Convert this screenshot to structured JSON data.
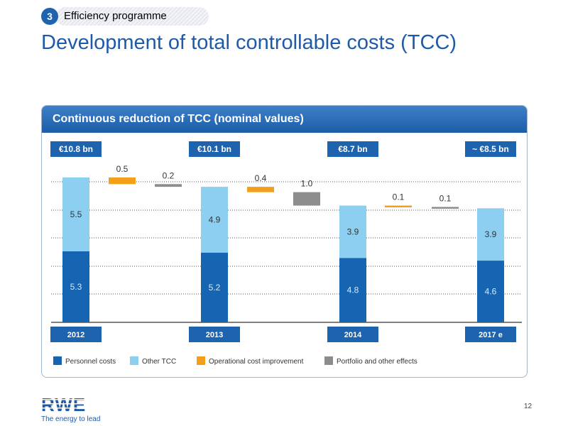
{
  "header": {
    "section_number": "3",
    "section_label": "Efficiency programme"
  },
  "title": "Development of total controllable costs (TCC)",
  "panel": {
    "title": "Continuous reduction of TCC (nominal values)"
  },
  "colors": {
    "personnel": "#1565b3",
    "other": "#8ccff0",
    "operational": "#f2a01a",
    "portfolio": "#8c8c8c",
    "header_blue": "#1e63ad"
  },
  "chart_data": {
    "type": "bar",
    "categories": [
      "2012",
      "2013",
      "2014",
      "2017 e"
    ],
    "totals": [
      "€10.8 bn",
      "€10.1 bn",
      "€8.7 bn",
      "~ €8.5 bn"
    ],
    "ylim": [
      0,
      11.5
    ],
    "series": [
      {
        "name": "Personnel costs",
        "values": [
          5.3,
          5.2,
          4.8,
          4.6
        ]
      },
      {
        "name": "Other TCC",
        "values": [
          5.5,
          4.9,
          3.9,
          3.9
        ]
      }
    ],
    "bridge": [
      {
        "between": [
          "2012",
          "2013"
        ],
        "operational_cost_improvement": 0.5,
        "portfolio_and_other_effects": 0.2
      },
      {
        "between": [
          "2013",
          "2014"
        ],
        "operational_cost_improvement": 0.4,
        "portfolio_and_other_effects": 1.0
      },
      {
        "between": [
          "2014",
          "2017 e"
        ],
        "operational_cost_improvement": 0.1,
        "portfolio_and_other_effects": 0.1
      }
    ],
    "legend": [
      "Personnel costs",
      "Other TCC",
      "Operational cost improvement",
      "Portfolio and other effects"
    ]
  },
  "footer": {
    "page_number": "12"
  }
}
